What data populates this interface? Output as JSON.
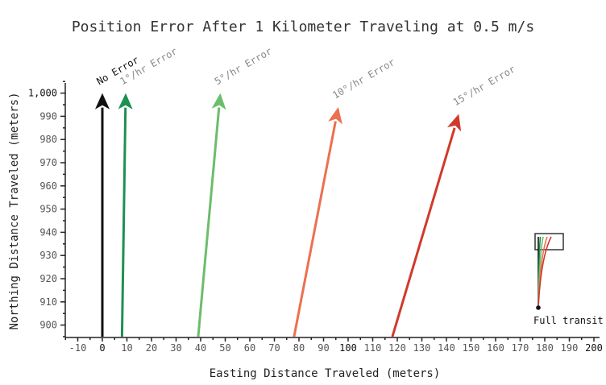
{
  "chart_data": {
    "type": "line",
    "title": "Position Error After 1 Kilometer Traveling at 0.5 m/s",
    "xlabel": "Easting Distance Traveled (meters)",
    "ylabel": "Northing Distance Traveled (meters)",
    "xlim": [
      -15,
      202
    ],
    "ylim": [
      895,
      1005
    ],
    "x_ticks": [
      "-10",
      "0",
      "10",
      "20",
      "30",
      "40",
      "50",
      "60",
      "70",
      "80",
      "90",
      "100",
      "110",
      "120",
      "130",
      "140",
      "150",
      "160",
      "170",
      "180",
      "190",
      "200"
    ],
    "y_ticks": [
      "900",
      "910",
      "920",
      "930",
      "940",
      "950",
      "960",
      "970",
      "980",
      "990",
      "1,000"
    ],
    "grid": false,
    "series": [
      {
        "name": "No Error",
        "color": "#111111",
        "start": [
          0,
          895
        ],
        "end": [
          0,
          1000
        ],
        "label_color": "#111111"
      },
      {
        "name": "1°/hr Error",
        "color": "#1e9050",
        "start": [
          8,
          895
        ],
        "end": [
          9.5,
          1000
        ],
        "label_color": "#888888"
      },
      {
        "name": "5°/hr Error",
        "color": "#6cbd6c",
        "start": [
          39,
          895
        ],
        "end": [
          48,
          1000
        ],
        "label_color": "#888888"
      },
      {
        "name": "10°/hr Error",
        "color": "#ec7050",
        "start": [
          78,
          895
        ],
        "end": [
          96,
          994
        ],
        "label_color": "#888888"
      },
      {
        "name": "15°/hr Error",
        "color": "#d03a2c",
        "start": [
          118,
          895
        ],
        "end": [
          145,
          991
        ],
        "label_color": "#888888"
      }
    ],
    "inset": {
      "label": "Full transit",
      "colors": [
        "#111111",
        "#1e9050",
        "#6cbd6c",
        "#ec7050",
        "#d03a2c"
      ]
    }
  }
}
